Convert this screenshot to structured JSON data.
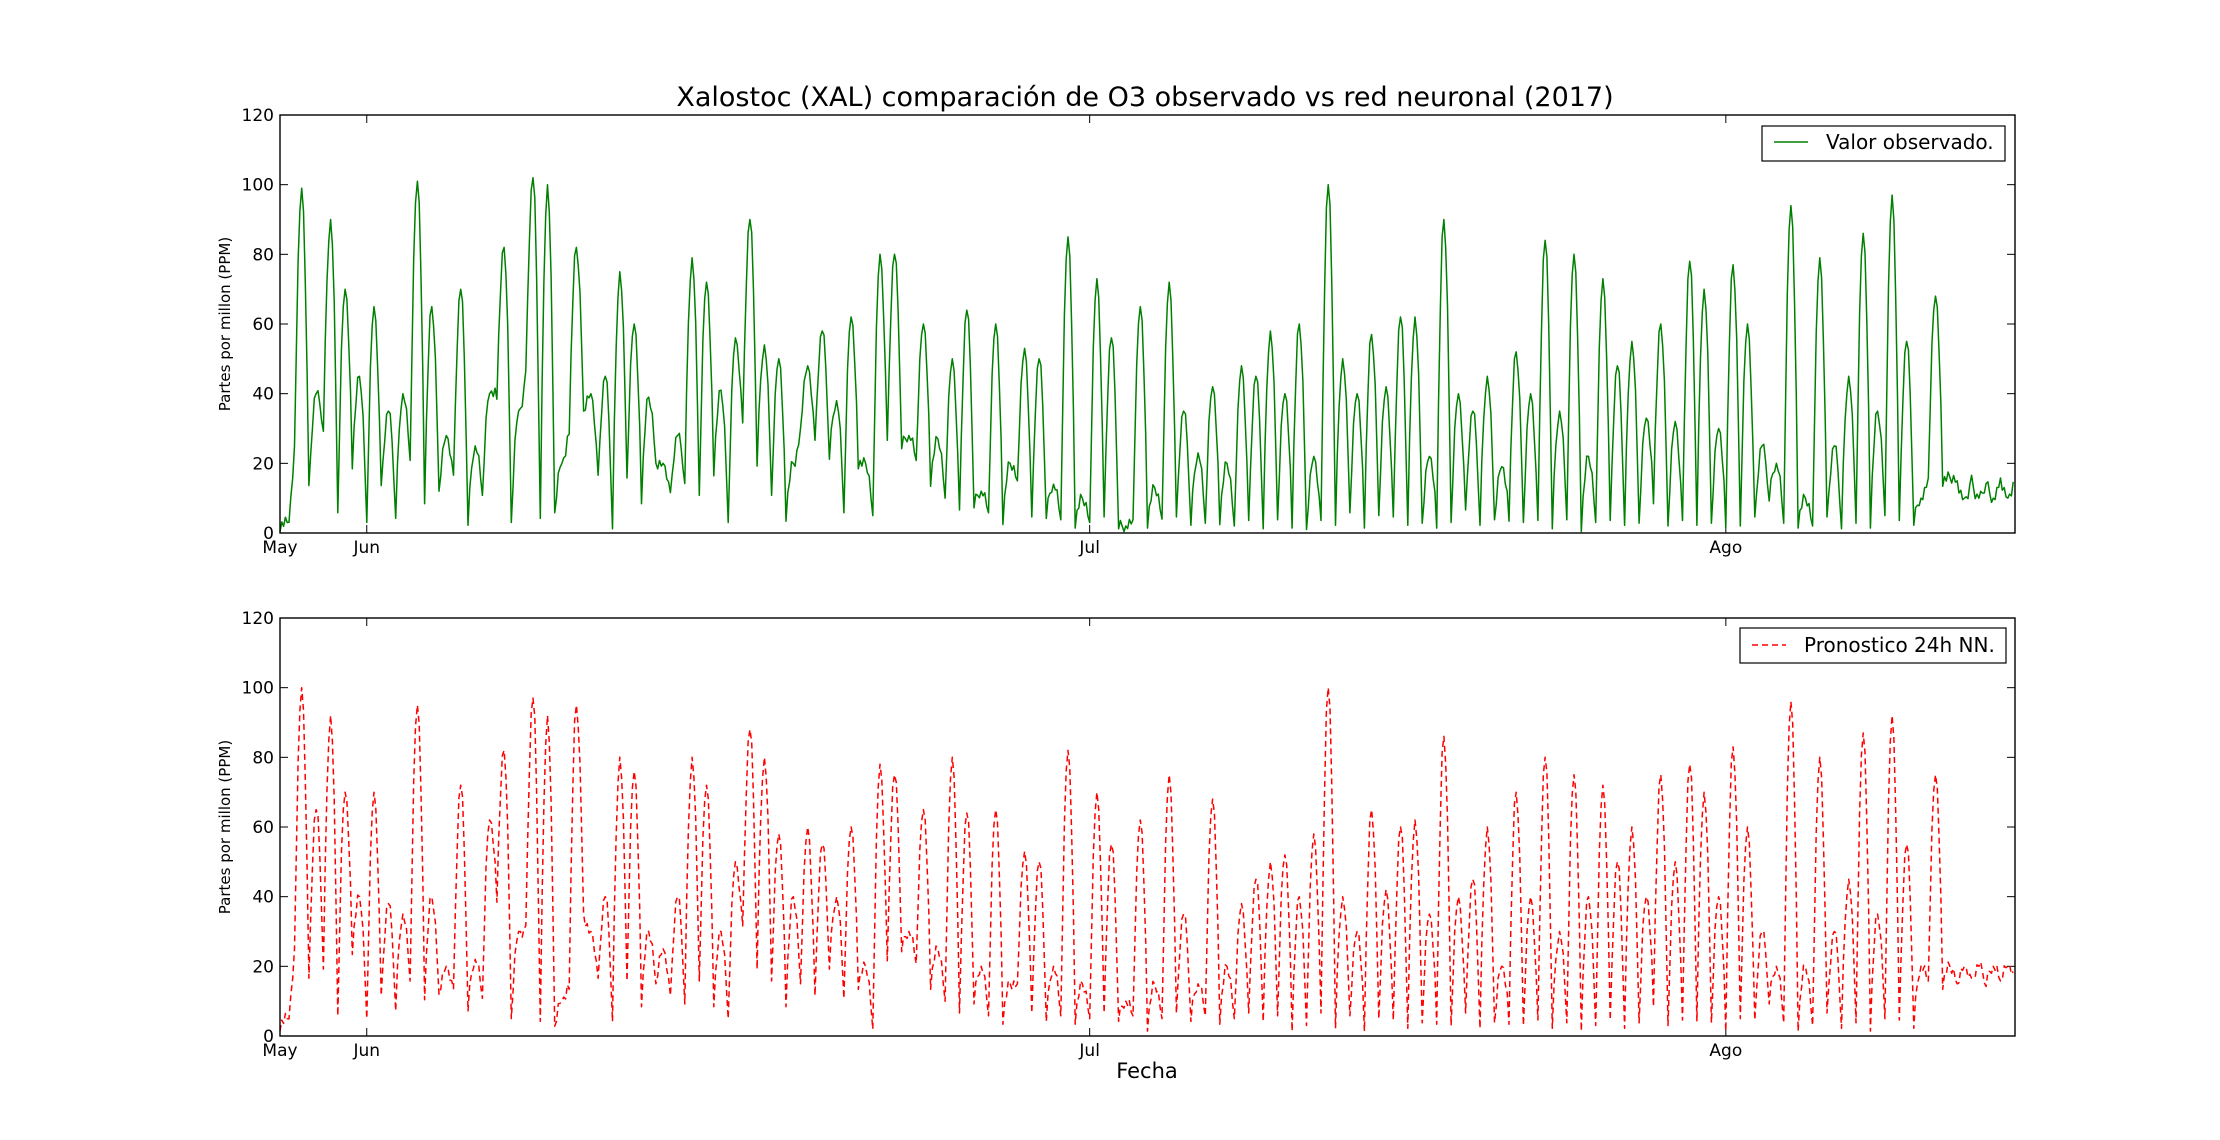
{
  "figure": {
    "title": "Xalostoc (XAL) comparación de O3 observado vs red neuronal (2017)",
    "xlabel": "Fecha"
  },
  "chart_data": [
    {
      "type": "line",
      "ylabel": "Partes por millon (PPM)",
      "ylim": [
        0,
        120
      ],
      "yticks": [
        0,
        20,
        40,
        60,
        80,
        100,
        120
      ],
      "x_axis": "day index (0 = May, 1 day per unit); tick labels at May, Jun, Jul, Ago",
      "xlim": [
        0,
        120
      ],
      "xticks": [
        {
          "value": 0,
          "label": "May"
        },
        {
          "value": 6,
          "label": "Jun"
        },
        {
          "value": 56,
          "label": "Jul"
        },
        {
          "value": 100,
          "label": "Ago"
        }
      ],
      "grid": false,
      "legend_position": "top-right",
      "series": [
        {
          "name": "Valor observado.",
          "color": "#008000",
          "style": "solid",
          "x_start": 0,
          "x_step": 1,
          "daily_peaks": [
            3,
            99,
            40,
            90,
            70,
            45,
            65,
            35,
            40,
            101,
            65,
            28,
            70,
            25,
            40,
            82,
            35,
            102,
            100,
            20,
            82,
            40,
            45,
            75,
            60,
            39,
            20,
            28,
            79,
            72,
            41,
            56,
            90,
            54,
            50,
            20,
            48,
            58,
            38,
            62,
            20,
            80,
            80,
            28,
            60,
            27,
            50,
            64,
            12,
            60,
            20,
            53,
            50,
            14,
            85,
            10,
            73,
            56,
            2,
            65,
            13,
            72,
            35,
            23,
            42,
            20,
            48,
            45,
            58,
            40,
            60,
            22,
            100,
            50,
            40,
            57,
            42,
            62,
            62,
            22,
            90,
            40,
            35,
            45,
            19,
            52,
            40,
            84,
            35,
            80,
            22,
            73,
            48,
            55,
            33,
            60,
            32,
            78,
            70,
            30,
            77,
            60,
            25,
            20,
            94,
            10,
            79,
            25,
            45,
            86,
            35,
            97,
            55,
            10,
            68,
            16,
            10,
            10,
            10,
            10
          ],
          "daily_troughs": [
            2,
            25,
            12,
            30,
            5,
            20,
            3,
            12,
            5,
            20,
            10,
            12,
            15,
            3,
            10,
            40,
            3,
            45,
            5,
            5,
            30,
            35,
            15,
            2,
            15,
            10,
            20,
            10,
            15,
            10,
            18,
            3,
            30,
            20,
            10,
            5,
            30,
            25,
            22,
            5,
            20,
            5,
            25,
            25,
            20,
            15,
            10,
            5,
            8,
            5,
            4,
            15,
            3,
            5,
            3,
            3,
            3,
            3,
            2,
            3,
            3,
            4,
            3,
            3,
            2,
            4,
            2,
            2,
            2,
            3,
            3,
            1,
            2,
            3,
            5,
            3,
            5,
            3,
            3,
            2,
            3,
            3,
            5,
            3,
            3,
            5,
            3,
            2,
            2,
            3,
            2,
            3,
            2,
            3,
            2,
            10,
            2,
            2,
            3,
            2,
            3,
            2,
            3,
            10,
            2,
            3,
            2,
            3,
            2,
            2,
            3,
            5,
            2,
            3,
            15,
            15,
            15,
            15,
            15,
            15
          ]
        }
      ]
    },
    {
      "type": "line",
      "ylabel": "Partes por millon (PPM)",
      "ylim": [
        0,
        120
      ],
      "yticks": [
        0,
        20,
        40,
        60,
        80,
        100,
        120
      ],
      "x_axis": "day index (0 = May, 1 day per unit); tick labels at May, Jun, Jul, Ago",
      "xlim": [
        0,
        120
      ],
      "xticks": [
        {
          "value": 0,
          "label": "May"
        },
        {
          "value": 6,
          "label": "Jun"
        },
        {
          "value": 56,
          "label": "Jul"
        },
        {
          "value": 100,
          "label": "Ago"
        }
      ],
      "grid": false,
      "legend_position": "top-right",
      "series": [
        {
          "name": "Pronostico 24h NN.",
          "color": "#ff0000",
          "style": "dashed",
          "x_start": 0,
          "x_step": 1,
          "daily_peaks": [
            5,
            100,
            65,
            92,
            70,
            40,
            70,
            38,
            35,
            95,
            40,
            20,
            72,
            22,
            62,
            82,
            30,
            97,
            92,
            10,
            95,
            30,
            40,
            80,
            76,
            30,
            25,
            40,
            80,
            72,
            30,
            50,
            88,
            80,
            58,
            40,
            60,
            55,
            40,
            60,
            20,
            78,
            75,
            30,
            65,
            25,
            80,
            64,
            20,
            65,
            15,
            53,
            50,
            20,
            82,
            15,
            70,
            55,
            10,
            62,
            15,
            75,
            35,
            15,
            68,
            20,
            38,
            45,
            50,
            52,
            40,
            58,
            100,
            40,
            30,
            65,
            42,
            60,
            62,
            35,
            86,
            40,
            45,
            60,
            20,
            70,
            40,
            80,
            30,
            75,
            40,
            72,
            50,
            60,
            40,
            75,
            50,
            78,
            70,
            40,
            83,
            60,
            30,
            20,
            96,
            20,
            80,
            30,
            45,
            87,
            35,
            92,
            55,
            20,
            75,
            20,
            20,
            20,
            20,
            20
          ],
          "daily_troughs": [
            3,
            25,
            15,
            20,
            5,
            25,
            5,
            10,
            8,
            15,
            12,
            12,
            12,
            8,
            10,
            40,
            5,
            30,
            5,
            2,
            15,
            35,
            15,
            5,
            15,
            10,
            15,
            10,
            10,
            15,
            10,
            5,
            30,
            20,
            15,
            10,
            15,
            10,
            20,
            10,
            15,
            2,
            20,
            25,
            20,
            15,
            10,
            5,
            10,
            5,
            5,
            15,
            5,
            5,
            5,
            5,
            5,
            5,
            5,
            5,
            3,
            5,
            5,
            5,
            5,
            5,
            5,
            5,
            5,
            5,
            3,
            3,
            5,
            3,
            5,
            3,
            5,
            3,
            3,
            3,
            5,
            3,
            5,
            3,
            3,
            5,
            3,
            3,
            3,
            3,
            3,
            3,
            3,
            3,
            3,
            10,
            3,
            3,
            5,
            3,
            3,
            5,
            3,
            10,
            3,
            3,
            3,
            5,
            3,
            3,
            3,
            5,
            3,
            3,
            15,
            15,
            15,
            15,
            15,
            15
          ]
        }
      ]
    }
  ]
}
